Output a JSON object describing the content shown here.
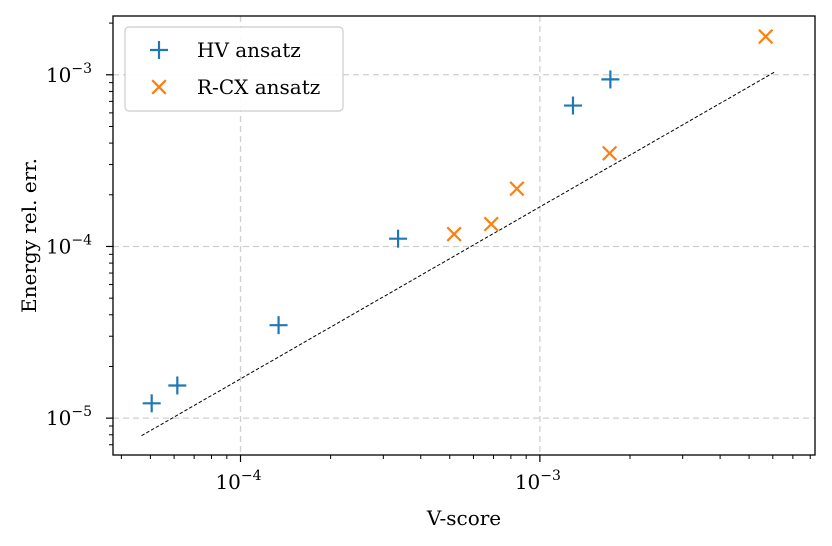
{
  "chart_data": {
    "type": "scatter",
    "title": "",
    "xlabel": "V-score",
    "ylabel": "Energy rel. err.",
    "xscale": "log",
    "yscale": "log",
    "xlim": [
      3.75e-05,
      0.0083
    ],
    "ylim": [
      6.1e-06,
      0.0022
    ],
    "grid": true,
    "grid_style": "dashed",
    "legend_position": "top-left",
    "x_ticks": [
      {
        "base": "10",
        "exp": "−4",
        "value": 0.0001
      },
      {
        "base": "10",
        "exp": "−3",
        "value": 0.001
      }
    ],
    "y_ticks": [
      {
        "base": "10",
        "exp": "−5",
        "value": 1e-05
      },
      {
        "base": "10",
        "exp": "−4",
        "value": 0.0001
      },
      {
        "base": "10",
        "exp": "−3",
        "value": 0.001
      }
    ],
    "series": [
      {
        "name": "HV ansatz",
        "marker": "plus",
        "color": "#1f77b4",
        "x": [
          5.05e-05,
          6.15e-05,
          0.000134,
          0.000336,
          0.00129,
          0.00172
        ],
        "y": [
          1.22e-05,
          1.55e-05,
          3.48e-05,
          0.000111,
          0.000662,
          0.00094
        ]
      },
      {
        "name": "R-CX ansatz",
        "marker": "x",
        "color": "#ff7f0e",
        "x": [
          0.000517,
          0.000688,
          0.000838,
          0.00171,
          0.00568
        ],
        "y": [
          0.000118,
          0.000135,
          0.000217,
          0.000349,
          0.00167
        ]
      }
    ],
    "reference_line": {
      "style": "dashed",
      "color": "#000000",
      "x": [
        4.67e-05,
        0.0061
      ],
      "y": [
        7.9e-06,
        0.00104
      ]
    }
  }
}
